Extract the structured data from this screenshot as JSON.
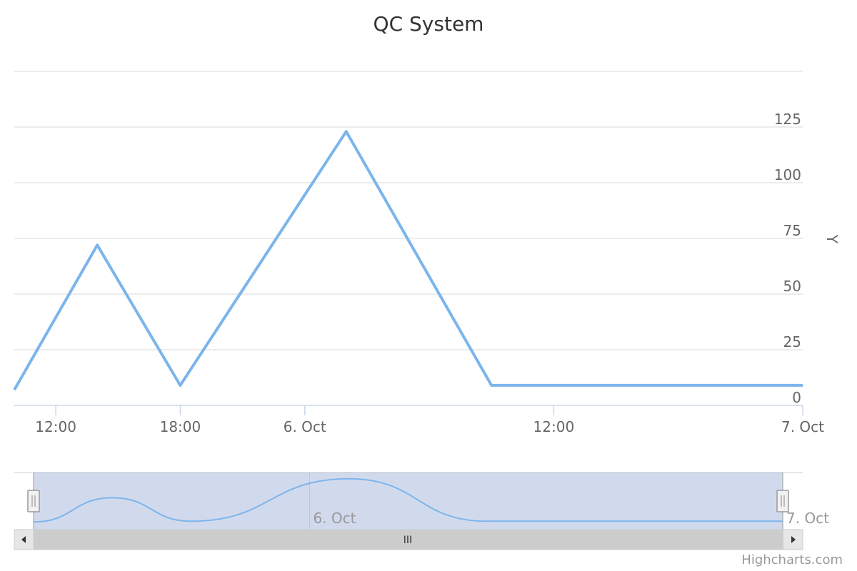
{
  "chart_data": {
    "type": "line",
    "title": "QC System",
    "ylabel": "Y",
    "xlabel": "",
    "x": [
      "2016-10-05T10:00",
      "2016-10-05T14:00",
      "2016-10-05T18:00",
      "2016-10-06T02:00",
      "2016-10-06T09:00",
      "2016-10-06T12:00",
      "2016-10-07T00:00"
    ],
    "series": [
      {
        "values": [
          7,
          72,
          9,
          123,
          9,
          9,
          9
        ]
      }
    ],
    "xlim": [
      "2016-10-05T10:00",
      "2016-10-07T00:00"
    ],
    "ylim": [
      0,
      150
    ],
    "yticks": [
      0,
      25,
      50,
      75,
      100,
      125
    ],
    "xtick_labels": [
      {
        "x": "2016-10-05T12:00",
        "label": "12:00"
      },
      {
        "x": "2016-10-05T18:00",
        "label": "18:00"
      },
      {
        "x": "2016-10-06T00:00",
        "label": "6. Oct"
      },
      {
        "x": "2016-10-06T12:00",
        "label": "12:00"
      },
      {
        "x": "2016-10-07T00:00",
        "label": "7. Oct"
      }
    ],
    "navigator_labels": [
      {
        "x": "2016-10-06T00:00",
        "label": "6. Oct"
      },
      {
        "x": "2016-10-07T00:00",
        "label": "7. Oct"
      }
    ],
    "yaxis_side": "right",
    "grid": true,
    "line_color": "#7cb5ec"
  },
  "scrollbar": {
    "grip": "III",
    "left_arrow": "◀",
    "right_arrow": "▶"
  },
  "credits": "Highcharts.com"
}
